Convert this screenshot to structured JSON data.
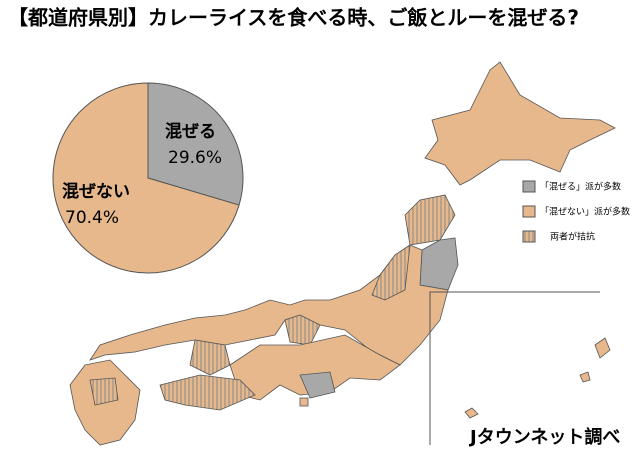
{
  "chart_data": {
    "type": "pie",
    "title": "【都道府県別】カレーライスを食べる時、ご飯とルーを混ぜる?",
    "categories": [
      "混ぜる",
      "混ぜない"
    ],
    "values": [
      29.6,
      70.4
    ],
    "value_labels": [
      "29.6%",
      "70.4%"
    ],
    "colors": [
      "#a8a8a8",
      "#e6b88c"
    ]
  },
  "map_legend": [
    "「混ぜる」派が多数",
    "「混ぜない」派が多数",
    "両者が拮抗"
  ],
  "source": "Jタウンネット調べ"
}
